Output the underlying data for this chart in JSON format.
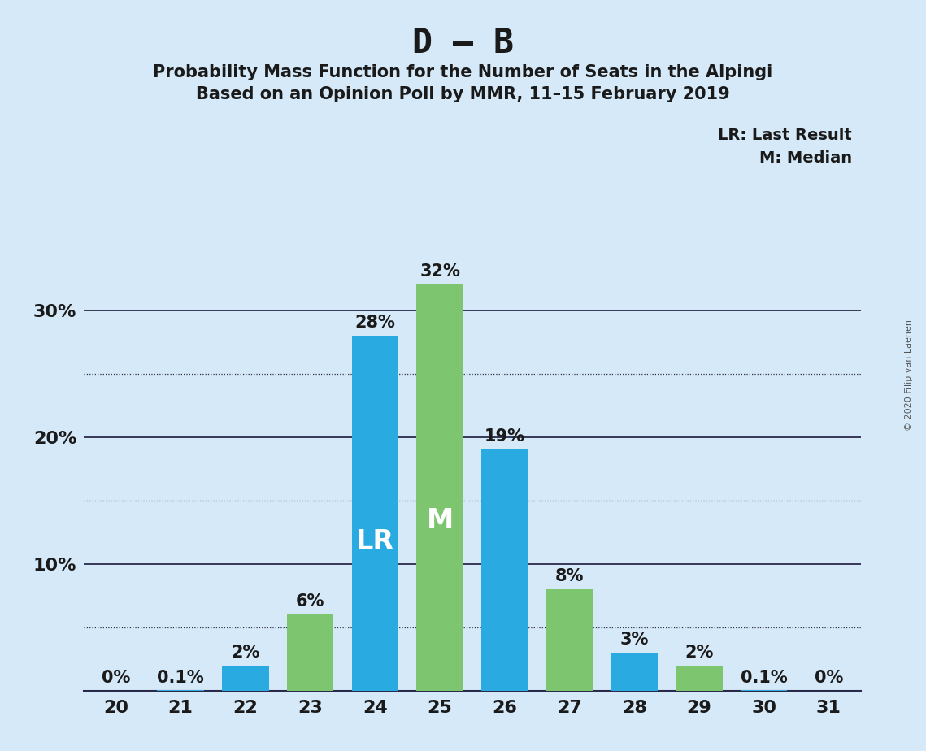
{
  "title_main": "D – B",
  "title_sub1": "Probability Mass Function for the Number of Seats in the Alpingi",
  "title_sub2": "Based on an Opinion Poll by MMR, 11–15 February 2019",
  "copyright_text": "© 2020 Filip van Laenen",
  "legend_line1": "LR: Last Result",
  "legend_line2": "M: Median",
  "seats": [
    20,
    21,
    22,
    23,
    24,
    25,
    26,
    27,
    28,
    29,
    30,
    31
  ],
  "blue_values": [
    0.0,
    0.001,
    0.02,
    0.0,
    0.28,
    0.0,
    0.19,
    0.0,
    0.03,
    0.0,
    0.001,
    0.0
  ],
  "green_values": [
    0.0,
    0.0,
    0.0,
    0.06,
    0.0,
    0.32,
    0.0,
    0.08,
    0.0,
    0.02,
    0.0,
    0.0
  ],
  "blue_labels": [
    "0%",
    "0.1%",
    "2%",
    "",
    "28%",
    "",
    "19%",
    "",
    "3%",
    "",
    "0.1%",
    "0%"
  ],
  "green_labels": [
    "",
    "",
    "",
    "6%",
    "",
    "32%",
    "",
    "8%",
    "",
    "2%",
    "",
    ""
  ],
  "lr_seat": 24,
  "median_seat": 25,
  "lr_label": "LR",
  "median_label": "M",
  "bar_width": 0.72,
  "blue_color": "#29ABE2",
  "green_color": "#7DC56F",
  "background_color": "#D6E9F8",
  "ylim": [
    0,
    0.355
  ],
  "solid_yticks": [
    0.1,
    0.2,
    0.3
  ],
  "dotted_yticks": [
    0.05,
    0.15,
    0.25
  ],
  "title_fontsize": 30,
  "subtitle_fontsize": 15,
  "tick_fontsize": 16,
  "annot_fontsize": 15,
  "lr_label_fontsize": 24,
  "median_label_fontsize": 24,
  "legend_fontsize": 14,
  "copyright_fontsize": 8
}
